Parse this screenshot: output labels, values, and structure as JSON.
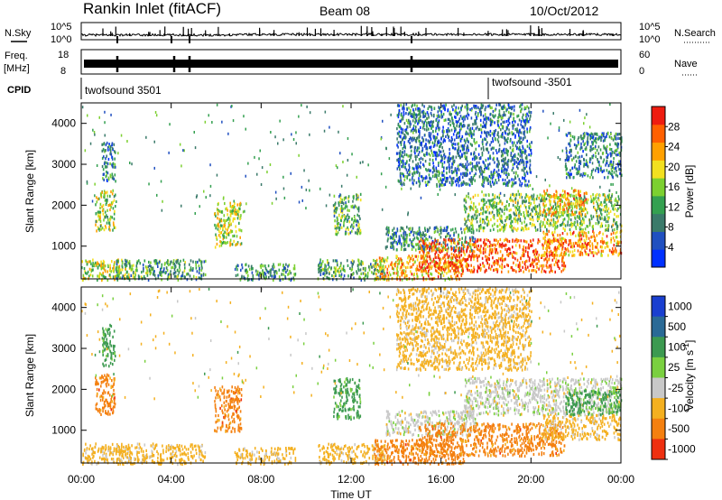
{
  "header": {
    "site": "Rankin Inlet (fitACF)",
    "beam": "Beam 08",
    "date": "10/Oct/2012"
  },
  "strips": {
    "nsky_label": "N.Sky",
    "nsky_ticks": [
      "10^5",
      "10^0"
    ],
    "nsearch_label": "N.Search",
    "nsearch_ticks": [
      "10^5",
      "10^0"
    ],
    "freq_label": "Freq.",
    "freq_unit": "[MHz]",
    "freq_ticks": [
      "18",
      "8"
    ],
    "nave_label": "Nave",
    "nave_ticks": [
      "60",
      "0"
    ],
    "cpid_label": "CPID",
    "cpid_entries": [
      {
        "name": "twofsound 3501",
        "start_hour": 0
      },
      {
        "name": "twofsound -3501",
        "start_hour": 18
      }
    ]
  },
  "chart_data": [
    {
      "type": "heatmap",
      "quantity": "power",
      "xlabel": "Time UT",
      "ylabel": "Slant Range [km]",
      "xlim": [
        0,
        24
      ],
      "ylim": [
        200,
        4500
      ],
      "x_ticks": [
        "00:00",
        "04:00",
        "08:00",
        "12:00",
        "16:00",
        "20:00",
        "00:00"
      ],
      "y_ticks": [
        "1000",
        "2000",
        "3000",
        "4000"
      ],
      "colorbar": {
        "label": "Power [dB]",
        "range": [
          0,
          32
        ],
        "ticks": [
          "4",
          "8",
          "12",
          "16",
          "20",
          "24",
          "28"
        ],
        "colors": [
          "#0030ff",
          "#2050c0",
          "#3a7a6a",
          "#34a050",
          "#7cd030",
          "#f2e020",
          "#ffa000",
          "#ff6000",
          "#ee1c10"
        ]
      },
      "regions": [
        {
          "t0": 0.0,
          "t1": 2.2,
          "r0": 200,
          "r1": 700,
          "value": 18
        },
        {
          "t0": 0.6,
          "t1": 1.5,
          "r0": 1400,
          "r1": 2400,
          "value": 17
        },
        {
          "t0": 0.9,
          "t1": 1.5,
          "r0": 2600,
          "r1": 3600,
          "value": 9
        },
        {
          "t0": 1.5,
          "t1": 5.5,
          "r0": 200,
          "r1": 700,
          "value": 12
        },
        {
          "t0": 5.9,
          "t1": 7.1,
          "r0": 1000,
          "r1": 2100,
          "value": 18
        },
        {
          "t0": 6.8,
          "t1": 9.5,
          "r0": 200,
          "r1": 600,
          "value": 11
        },
        {
          "t0": 11.2,
          "t1": 12.4,
          "r0": 1300,
          "r1": 2300,
          "value": 13
        },
        {
          "t0": 10.5,
          "t1": 13.5,
          "r0": 200,
          "r1": 700,
          "value": 12
        },
        {
          "t0": 13.0,
          "t1": 17.0,
          "r0": 200,
          "r1": 800,
          "value": 22
        },
        {
          "t0": 13.5,
          "t1": 17.5,
          "r0": 900,
          "r1": 1500,
          "value": 10
        },
        {
          "t0": 15.0,
          "t1": 21.5,
          "r0": 400,
          "r1": 1200,
          "value": 27
        },
        {
          "t0": 17.0,
          "t1": 24.0,
          "r0": 1400,
          "r1": 2300,
          "value": 15
        },
        {
          "t0": 20.5,
          "t1": 24.0,
          "r0": 800,
          "r1": 1400,
          "value": 24
        },
        {
          "t0": 20.5,
          "t1": 22.5,
          "r0": 1800,
          "r1": 2400,
          "value": 22
        },
        {
          "t0": 21.5,
          "t1": 24.0,
          "r0": 2700,
          "r1": 3800,
          "value": 9
        },
        {
          "t0": 14.0,
          "t1": 20.0,
          "r0": 2500,
          "r1": 4500,
          "value": 8
        }
      ]
    },
    {
      "type": "heatmap",
      "quantity": "velocity",
      "xlabel": "Time UT",
      "ylabel": "Slant Range [km]",
      "xlim": [
        0,
        24
      ],
      "ylim": [
        200,
        4500
      ],
      "x_ticks": [
        "00:00",
        "04:00",
        "08:00",
        "12:00",
        "16:00",
        "20:00",
        "00:00"
      ],
      "y_ticks": [
        "1000",
        "2000",
        "3000",
        "4000"
      ],
      "colorbar": {
        "label": "Velocity [m s^-1]",
        "ticks": [
          "1000",
          "500",
          "100",
          "25",
          "-25",
          "-100",
          "-500",
          "-1000"
        ],
        "levels": [
          {
            "label": "1000",
            "color": "#1a3fd0"
          },
          {
            "label": "500",
            "color": "#2a6a96"
          },
          {
            "label": "100",
            "color": "#3c9a50"
          },
          {
            "label": "25",
            "color": "#7ad040"
          },
          {
            "label": "-25",
            "color": "#c8c8c8"
          },
          {
            "label": "-100",
            "color": "#f4b020"
          },
          {
            "label": "-500",
            "color": "#f48010"
          },
          {
            "label": "-1000",
            "color": "#ee3010"
          }
        ]
      },
      "regions": [
        {
          "t0": 0.0,
          "t1": 2.2,
          "r0": 200,
          "r1": 700,
          "value": -100
        },
        {
          "t0": 0.6,
          "t1": 1.5,
          "r0": 1400,
          "r1": 2400,
          "value": -500
        },
        {
          "t0": 0.9,
          "t1": 1.5,
          "r0": 2600,
          "r1": 3600,
          "value": 100
        },
        {
          "t0": 1.5,
          "t1": 5.5,
          "r0": 200,
          "r1": 700,
          "value": -100
        },
        {
          "t0": 5.9,
          "t1": 7.1,
          "r0": 1000,
          "r1": 2100,
          "value": -500
        },
        {
          "t0": 6.8,
          "t1": 9.5,
          "r0": 200,
          "r1": 600,
          "value": -100
        },
        {
          "t0": 11.2,
          "t1": 12.4,
          "r0": 1300,
          "r1": 2300,
          "value": 100
        },
        {
          "t0": 10.5,
          "t1": 13.5,
          "r0": 200,
          "r1": 700,
          "value": -100
        },
        {
          "t0": 13.0,
          "t1": 17.0,
          "r0": 200,
          "r1": 800,
          "value": -500
        },
        {
          "t0": 13.5,
          "t1": 17.5,
          "r0": 900,
          "r1": 1500,
          "value": -25
        },
        {
          "t0": 15.0,
          "t1": 21.5,
          "r0": 400,
          "r1": 1200,
          "value": -500
        },
        {
          "t0": 17.0,
          "t1": 24.0,
          "r0": 1400,
          "r1": 2300,
          "value": -25
        },
        {
          "t0": 20.5,
          "t1": 24.0,
          "r0": 800,
          "r1": 1400,
          "value": -100
        },
        {
          "t0": 21.5,
          "t1": 24.0,
          "r0": 1400,
          "r1": 2000,
          "value": 100
        },
        {
          "t0": 14.0,
          "t1": 20.0,
          "r0": 2500,
          "r1": 4500,
          "value": -100
        }
      ]
    }
  ]
}
